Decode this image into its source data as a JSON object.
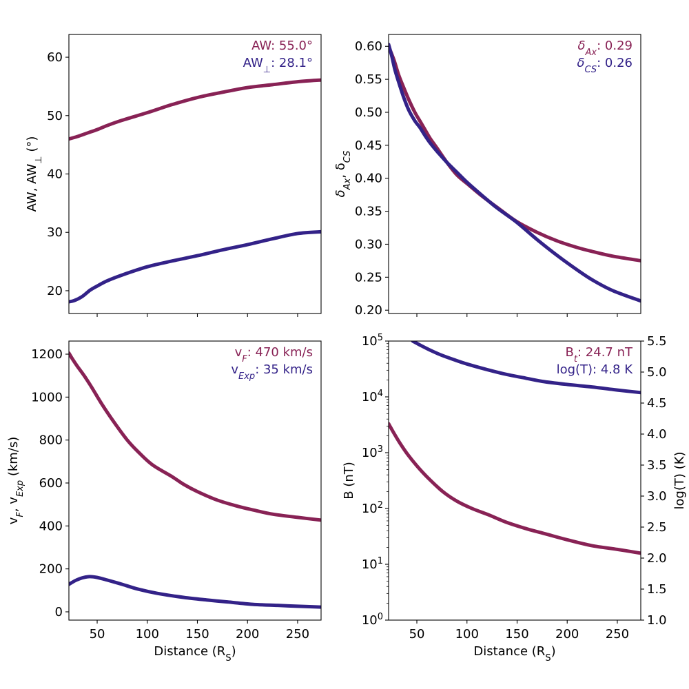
{
  "colors": {
    "series_a": "#882255",
    "series_b": "#332288",
    "axis": "#000000",
    "background": "#ffffff"
  },
  "chart_data": [
    {
      "id": "angular-width",
      "type": "line",
      "xlim": [
        21.8,
        273.4
      ],
      "ylim": [
        16.1,
        63.9
      ],
      "yscale": "linear",
      "ylabel": {
        "main": "AW, AW",
        "sub": "⊥",
        "tail": " (°)"
      },
      "xlabel": null,
      "xticks": [
        50,
        100,
        150,
        200,
        250
      ],
      "xtick_labels_visible": false,
      "yticks": [
        20,
        30,
        40,
        50,
        60
      ],
      "ytick_labels": [
        "20",
        "30",
        "40",
        "50",
        "60"
      ],
      "grid": false,
      "annotations": [
        {
          "main": "AW: 55.0",
          "sub": "",
          "tail": "°",
          "color_key": "series_a"
        },
        {
          "main": "AW",
          "sub": "⊥",
          "tail": ": 28.1°",
          "color_key": "series_b"
        }
      ],
      "series": [
        {
          "name": "AW",
          "color_key": "series_a",
          "x": [
            21.8,
            30,
            40,
            50,
            60,
            75,
            100,
            125,
            150,
            175,
            200,
            225,
            250,
            273.4
          ],
          "y": [
            46.0,
            46.4,
            47.0,
            47.6,
            48.3,
            49.2,
            50.5,
            51.9,
            53.1,
            54.0,
            54.8,
            55.3,
            55.8,
            56.1
          ]
        },
        {
          "name": "AW_perp",
          "color_key": "series_b",
          "x": [
            21.8,
            27,
            35,
            43,
            50,
            60,
            75,
            100,
            125,
            150,
            175,
            200,
            225,
            250,
            273.4
          ],
          "y": [
            18.1,
            18.3,
            19.0,
            20.1,
            20.8,
            21.7,
            22.7,
            24.1,
            25.1,
            26.0,
            27.0,
            27.9,
            28.9,
            29.8,
            30.1
          ]
        }
      ]
    },
    {
      "id": "aspect-ratio",
      "type": "line",
      "xlim": [
        21.8,
        273.4
      ],
      "ylim": [
        0.195,
        0.618
      ],
      "yscale": "linear",
      "ylabel": {
        "p1": "δ",
        "s1": "Ax",
        "p2": ", δ",
        "s2": "CS"
      },
      "xlabel": null,
      "xticks": [
        50,
        100,
        150,
        200,
        250
      ],
      "xtick_labels_visible": false,
      "yticks": [
        0.2,
        0.25,
        0.3,
        0.35,
        0.4,
        0.45,
        0.5,
        0.55,
        0.6
      ],
      "ytick_labels": [
        "0.20",
        "0.25",
        "0.30",
        "0.35",
        "0.40",
        "0.45",
        "0.50",
        "0.55",
        "0.60"
      ],
      "grid": false,
      "annotations": [
        {
          "main": "δ",
          "sub": "Ax",
          "tail": ": 0.29",
          "color_key": "series_a"
        },
        {
          "main": "δ",
          "sub": "CS",
          "tail": ": 0.26",
          "color_key": "series_b"
        }
      ],
      "series": [
        {
          "name": "delta_Ax",
          "color_key": "series_a",
          "x": [
            21.8,
            27,
            32,
            37,
            42,
            48,
            53,
            58,
            63,
            70,
            80,
            90,
            100,
            115,
            130,
            149,
            170,
            190,
            210,
            225,
            245,
            273.4
          ],
          "y": [
            0.6,
            0.58,
            0.556,
            0.537,
            0.519,
            0.5,
            0.487,
            0.474,
            0.461,
            0.446,
            0.424,
            0.405,
            0.392,
            0.373,
            0.356,
            0.335,
            0.318,
            0.305,
            0.295,
            0.289,
            0.282,
            0.275
          ]
        },
        {
          "name": "delta_CS",
          "color_key": "series_b",
          "x": [
            21.8,
            25,
            28,
            32,
            37,
            42,
            48,
            53,
            58,
            63,
            70,
            80,
            90,
            100,
            115,
            130,
            149,
            170,
            190,
            210,
            225,
            245,
            273.4
          ],
          "y": [
            0.603,
            0.585,
            0.565,
            0.545,
            0.522,
            0.503,
            0.487,
            0.477,
            0.465,
            0.454,
            0.441,
            0.424,
            0.409,
            0.394,
            0.374,
            0.355,
            0.334,
            0.307,
            0.283,
            0.261,
            0.246,
            0.23,
            0.214
          ]
        }
      ]
    },
    {
      "id": "velocity",
      "type": "line",
      "xlim": [
        21.8,
        273.4
      ],
      "ylim": [
        -38.5,
        1261
      ],
      "yscale": "linear",
      "ylabel": {
        "p1": "v",
        "s1": "F",
        "p2": ", v",
        "s2": "Exp",
        "tail": " (km/s)"
      },
      "xlabel": {
        "main": "Distance (R",
        "sub": "S",
        "tail": ")"
      },
      "xticks": [
        50,
        100,
        150,
        200,
        250
      ],
      "xtick_labels": [
        "50",
        "100",
        "150",
        "200",
        "250"
      ],
      "xtick_labels_visible": true,
      "yticks": [
        0,
        200,
        400,
        600,
        800,
        1000,
        1200
      ],
      "ytick_labels": [
        "0",
        "200",
        "400",
        "600",
        "800",
        "1000",
        "1200"
      ],
      "grid": false,
      "annotations": [
        {
          "main": "v",
          "sub": "F",
          "tail": ":  470 km/s",
          "color_key": "series_a"
        },
        {
          "main": "v",
          "sub": "Exp",
          "tail": ":   35 km/s",
          "color_key": "series_b"
        }
      ],
      "series": [
        {
          "name": "v_F",
          "color_key": "series_a",
          "x": [
            21.8,
            25,
            30,
            37,
            44.5,
            55,
            67.9,
            80,
            90.5,
            105,
            124.9,
            136.6,
            150,
            170,
            190,
            205,
            225,
            250,
            273.4
          ],
          "y": [
            1205,
            1180,
            1145,
            1100,
            1046,
            965,
            876,
            800,
            747,
            685,
            629,
            593,
            560,
            520,
            492,
            475,
            455,
            440,
            427
          ]
        },
        {
          "name": "v_Exp",
          "color_key": "series_b",
          "x": [
            21.8,
            28,
            35,
            42.4,
            50,
            60,
            75,
            90.5,
            110,
            136.6,
            160,
            180,
            205,
            230,
            250,
            273.4
          ],
          "y": [
            128,
            145,
            158,
            164,
            160,
            148,
            128,
            106,
            86,
            67,
            55,
            46,
            35,
            30,
            26,
            22
          ]
        }
      ]
    },
    {
      "id": "magnetic-field-temperature",
      "type": "line",
      "xlim": [
        21.8,
        273.4
      ],
      "ylim": [
        1,
        100000
      ],
      "yscale": "log",
      "ylabel": {
        "main": "B (nT)"
      },
      "xlabel": {
        "main": "Distance (R",
        "sub": "S",
        "tail": ")"
      },
      "xticks": [
        50,
        100,
        150,
        200,
        250
      ],
      "xtick_labels": [
        "50",
        "100",
        "150",
        "200",
        "250"
      ],
      "xtick_labels_visible": true,
      "yticks": [
        1,
        10,
        100,
        1000,
        10000,
        100000
      ],
      "ytick_labels": [
        {
          "base": "10",
          "exp": "0"
        },
        {
          "base": "10",
          "exp": "1"
        },
        {
          "base": "10",
          "exp": "2"
        },
        {
          "base": "10",
          "exp": "3"
        },
        {
          "base": "10",
          "exp": "4"
        },
        {
          "base": "10",
          "exp": "5"
        }
      ],
      "y2lim": [
        1.0,
        5.5
      ],
      "y2label": "log(T) (K)",
      "y2ticks": [
        1.0,
        1.5,
        2.0,
        2.5,
        3.0,
        3.5,
        4.0,
        4.5,
        5.0,
        5.5
      ],
      "y2tick_labels": [
        "1.0",
        "1.5",
        "2.0",
        "2.5",
        "3.0",
        "3.5",
        "4.0",
        "4.5",
        "5.0",
        "5.5"
      ],
      "grid": false,
      "annotations": [
        {
          "main": "B",
          "sub": "t",
          "tail": ": 24.7 nT",
          "color_key": "series_a"
        },
        {
          "main": "log(T):  4.8 K",
          "sub": "",
          "tail": "",
          "color_key": "series_b"
        }
      ],
      "series": [
        {
          "name": "B",
          "axis": "left",
          "color_key": "series_a",
          "x": [
            21.8,
            28,
            34,
            41,
            50,
            60,
            75.4,
            90,
            105,
            121.5,
            140,
            160,
            178.5,
            200,
            224.5,
            250,
            273.4
          ],
          "y": [
            3300,
            2100,
            1400,
            920,
            580,
            370,
            204,
            135,
            100,
            77,
            56,
            43,
            35,
            27.5,
            21.6,
            18.5,
            15.8
          ]
        },
        {
          "name": "log_T",
          "axis": "right",
          "color_key": "series_b",
          "x": [
            45.9,
            55,
            65,
            75,
            87,
            100,
            120,
            140,
            156,
            175,
            200,
            224.5,
            250,
            272.7
          ],
          "y": [
            5.5,
            5.42,
            5.34,
            5.27,
            5.2,
            5.13,
            5.04,
            4.96,
            4.91,
            4.85,
            4.8,
            4.76,
            4.71,
            4.67
          ]
        }
      ]
    }
  ]
}
